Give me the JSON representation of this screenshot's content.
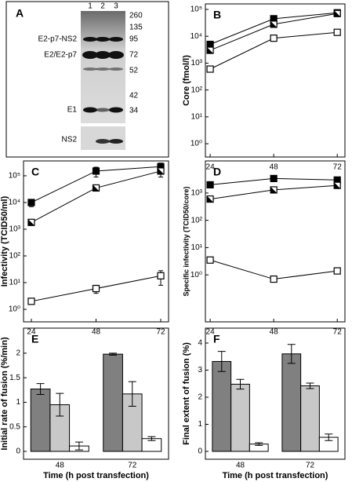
{
  "gel": {
    "panel": "A",
    "lanes": [
      "1",
      "2",
      "3"
    ],
    "markers": [
      260,
      135,
      95,
      72,
      52,
      42,
      34
    ],
    "bands": [
      "E2-p7-NS2",
      "E2/E2-p7",
      "E1"
    ],
    "strip": "NS2"
  },
  "chart_data": [
    {
      "type": "line",
      "panel": "B",
      "ylabel": "Core (fmol/l)",
      "x": [
        24,
        48,
        72
      ],
      "xlim": [
        22.2,
        74.9
      ],
      "xticks": [
        24,
        48,
        72
      ],
      "log_y": true,
      "ylim": [
        0.32,
        160000
      ],
      "yticks": [
        {
          "value": 1,
          "label": "10⁰"
        },
        {
          "value": 10,
          "label": "10¹"
        },
        {
          "value": 100,
          "label": "10²"
        },
        {
          "value": 1000,
          "label": "10³"
        },
        {
          "value": 10000,
          "label": "10⁴"
        },
        {
          "value": 100000,
          "label": "10⁵"
        }
      ],
      "series": [
        {
          "marker": "filled",
          "color": "#000000",
          "values": [
            5000,
            45000,
            75000
          ]
        },
        {
          "marker": "half",
          "color": "#000000",
          "values": [
            3000,
            28000,
            70000
          ]
        },
        {
          "marker": "open",
          "color": "#000000",
          "values": [
            600,
            8500,
            14000
          ]
        }
      ]
    },
    {
      "type": "line",
      "panel": "C",
      "ylabel": "Infectivity (TCID50/ml)",
      "x": [
        24,
        48,
        72
      ],
      "xlim": [
        21.1,
        74.9
      ],
      "xticks": [
        24,
        48,
        72
      ],
      "log_y": true,
      "ylim": [
        0.34,
        360000
      ],
      "yticks": [
        {
          "value": 1,
          "label": "10⁰"
        },
        {
          "value": 10,
          "label": "10¹"
        },
        {
          "value": 100,
          "label": "10²"
        },
        {
          "value": 1000,
          "label": "10³"
        },
        {
          "value": 10000,
          "label": "10⁴"
        },
        {
          "value": 100000,
          "label": "10⁵"
        }
      ],
      "series": [
        {
          "marker": "filled",
          "color": "#000000",
          "values": [
            10000,
            150000,
            220000
          ],
          "errors": [
            3000,
            60000,
            80000
          ]
        },
        {
          "marker": "half",
          "color": "#000000",
          "values": [
            1800,
            35000,
            150000
          ],
          "errors": [
            null,
            null,
            60000
          ]
        },
        {
          "marker": "open",
          "color": "#000000",
          "values": [
            2,
            6,
            18
          ],
          "errors": [
            null,
            2,
            10
          ]
        }
      ]
    },
    {
      "type": "line",
      "panel": "D",
      "ylabel": "Specific infectivity (TCID50/core)",
      "x": [
        24,
        48,
        72
      ],
      "xlim": [
        22.2,
        74.9
      ],
      "xticks": [
        24,
        48,
        72
      ],
      "log_y": true,
      "ylim": [
        0.019,
        15000
      ],
      "yticks": [
        {
          "value": 1,
          "label": "10⁰"
        },
        {
          "value": 10,
          "label": "10¹"
        },
        {
          "value": 100,
          "label": "10²"
        },
        {
          "value": 1000,
          "label": "10³"
        }
      ],
      "series": [
        {
          "marker": "filled",
          "color": "#000000",
          "values": [
            2000,
            3400,
            3000
          ]
        },
        {
          "marker": "half",
          "color": "#000000",
          "values": [
            600,
            1300,
            1900
          ]
        },
        {
          "marker": "open",
          "color": "#000000",
          "values": [
            3.5,
            0.7,
            1.4
          ]
        }
      ]
    },
    {
      "type": "bar",
      "panel": "E",
      "ylabel": "Initial rate of fusion (%/min)",
      "xlabel": "Time (h post transfection)",
      "categories": [
        "48",
        "72"
      ],
      "ylim": [
        -0.16,
        2.51
      ],
      "yticks": [
        0,
        0.5,
        1,
        1.5,
        2
      ],
      "series": [
        {
          "color": "#808080",
          "values": [
            1.27,
            1.98
          ],
          "errors": [
            0.11,
            0.02
          ]
        },
        {
          "color": "#c8c8c8",
          "values": [
            0.95,
            1.17
          ],
          "errors": [
            0.23,
            0.25
          ]
        },
        {
          "color": "#ffffff",
          "values": [
            0.11,
            0.26
          ],
          "errors": [
            0.08,
            0.04
          ]
        }
      ]
    },
    {
      "type": "bar",
      "panel": "F",
      "ylabel": "Final extent of fusion (%)",
      "xlabel": "Time (h post transfection)",
      "categories": [
        "48",
        "72"
      ],
      "ylim": [
        -0.29,
        4.55
      ],
      "yticks": [
        0,
        1,
        2,
        3,
        4
      ],
      "series": [
        {
          "color": "#808080",
          "values": [
            3.32,
            3.6
          ],
          "errors": [
            0.37,
            0.35
          ]
        },
        {
          "color": "#c8c8c8",
          "values": [
            2.48,
            2.42
          ],
          "errors": [
            0.18,
            0.1
          ]
        },
        {
          "color": "#ffffff",
          "values": [
            0.27,
            0.52
          ],
          "errors": [
            0.05,
            0.12
          ]
        }
      ]
    }
  ]
}
